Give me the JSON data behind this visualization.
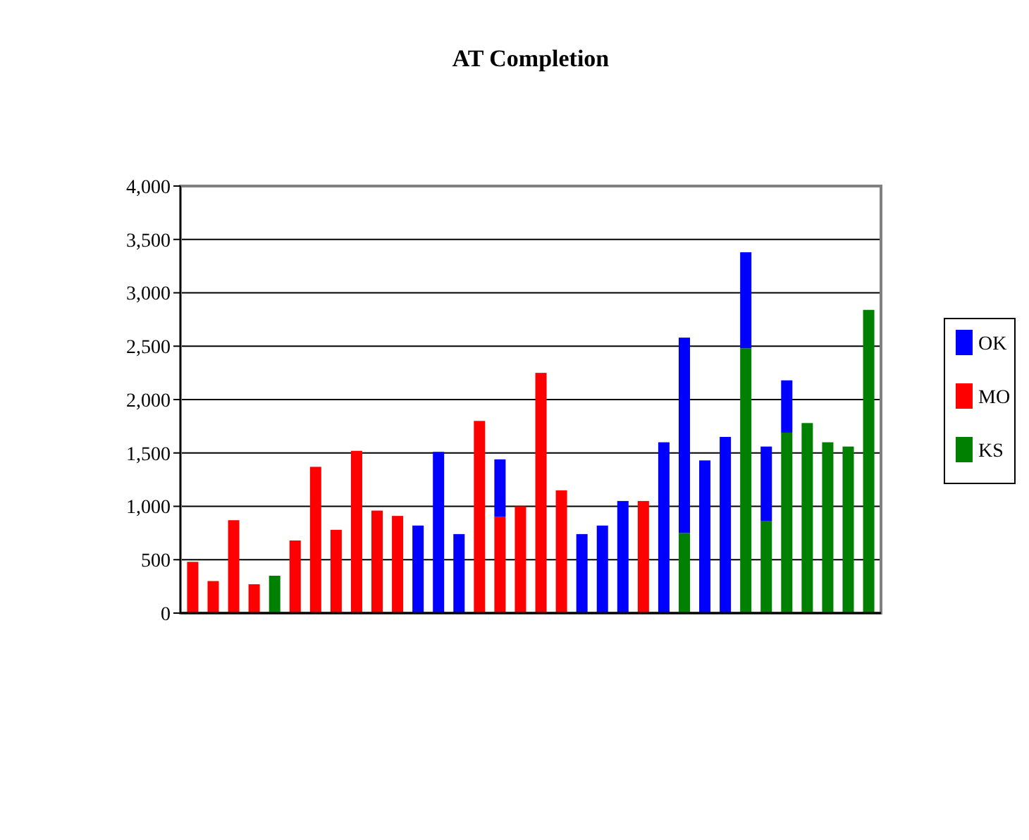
{
  "chart_data": {
    "type": "bar",
    "title": "AT Completion",
    "stacked": true,
    "grid": "y",
    "legend": "right",
    "tick_labels": "y",
    "categories": [
      null,
      null,
      null,
      null,
      null,
      null,
      null,
      null,
      null,
      null,
      null,
      null,
      null,
      null,
      null,
      null,
      null,
      null,
      null,
      null,
      null,
      null,
      null,
      null,
      null,
      null,
      null,
      null,
      null,
      null,
      null,
      null,
      null,
      null
    ],
    "ylim": [
      0,
      4000
    ],
    "yticks": [
      0,
      500,
      {
        "value": 1000,
        "label": "1,000"
      },
      {
        "value": 1500,
        "label": "1,500"
      },
      {
        "value": 2000,
        "label": "2,000"
      },
      {
        "value": 2500,
        "label": "2,500"
      },
      {
        "value": 3000,
        "label": "3,000"
      },
      {
        "value": 3500,
        "label": "3,500"
      },
      {
        "value": 4000,
        "label": "4,000"
      }
    ],
    "series": [
      {
        "name": "KS",
        "color": "#008000",
        "values": [
          null,
          null,
          null,
          null,
          350,
          null,
          null,
          null,
          null,
          null,
          null,
          null,
          null,
          null,
          null,
          null,
          null,
          null,
          null,
          null,
          null,
          null,
          null,
          null,
          750,
          null,
          null,
          2480,
          860,
          1690,
          1780,
          1600,
          1560,
          2840
        ]
      },
      {
        "name": "MO",
        "color": "#ff0000",
        "values": [
          480,
          300,
          870,
          270,
          null,
          680,
          1370,
          780,
          1520,
          960,
          910,
          null,
          null,
          null,
          1800,
          900,
          1000,
          2250,
          1150,
          null,
          null,
          null,
          1050,
          null,
          null,
          null,
          null,
          null,
          null,
          null,
          null,
          null,
          null,
          null
        ]
      },
      {
        "name": "OK",
        "color": "#0000ff",
        "values": [
          null,
          null,
          null,
          null,
          null,
          null,
          null,
          null,
          null,
          null,
          null,
          820,
          1510,
          740,
          null,
          540,
          null,
          null,
          null,
          740,
          820,
          1050,
          null,
          1600,
          1830,
          1430,
          1650,
          900,
          700,
          490,
          null,
          null,
          null,
          null
        ]
      }
    ]
  }
}
